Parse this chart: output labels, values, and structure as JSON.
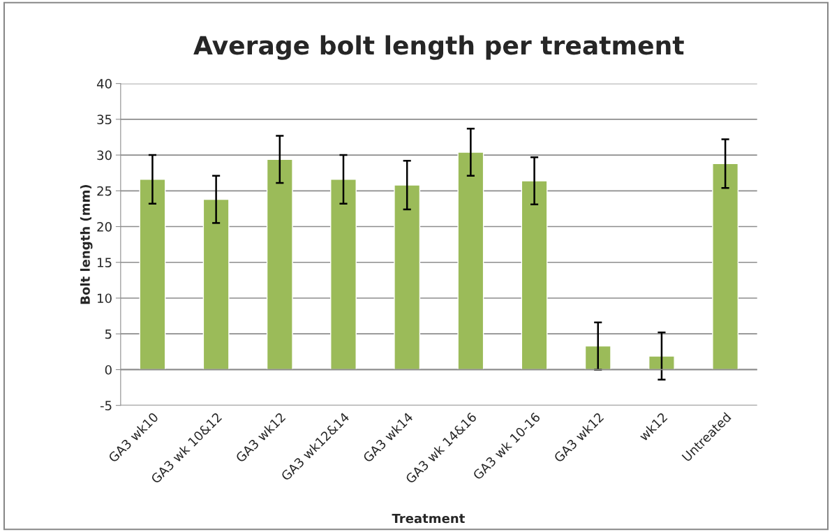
{
  "chart_data": {
    "type": "bar",
    "title": "Average bolt length per treatment",
    "xlabel": "Treatment",
    "ylabel": "Bolt length (mm)",
    "categories": [
      "GA3 wk10",
      "GA3 wk 10&12",
      "GA3 wk12",
      "GA3 wk12&14",
      "GA3 wk14",
      "GA3 wk 14&16",
      "GA3 wk 10-16",
      "GA3 wk12",
      "wk12",
      "Untreated"
    ],
    "values": [
      26.6,
      23.8,
      29.4,
      26.6,
      25.8,
      30.4,
      26.4,
      3.3,
      1.9,
      28.8
    ],
    "errors": [
      3.4,
      3.3,
      3.3,
      3.4,
      3.4,
      3.3,
      3.3,
      3.3,
      3.3,
      3.4
    ],
    "color": "#9bbb59",
    "ylim": [
      -5,
      40
    ],
    "yticks": [
      -5,
      0,
      5,
      10,
      15,
      20,
      25,
      30,
      35,
      40
    ],
    "grid": "y"
  }
}
